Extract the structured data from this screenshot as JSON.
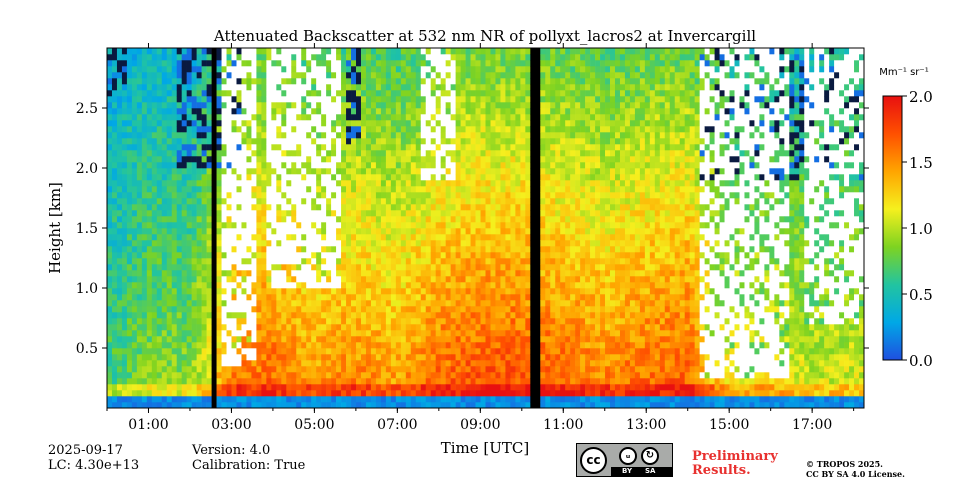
{
  "chart_data": {
    "type": "heatmap",
    "title": "Attenuated Backscatter at 532 nm NR of pollyxt_lacros2 at Invercargill",
    "xlabel": "Time [UTC]",
    "ylabel": "Height [km]",
    "x_range_hours": [
      0.0,
      18.25
    ],
    "y_range_km": [
      0.0,
      3.0
    ],
    "x_ticks": [
      {
        "value": 1,
        "label": "01:00"
      },
      {
        "value": 3,
        "label": "03:00"
      },
      {
        "value": 5,
        "label": "05:00"
      },
      {
        "value": 7,
        "label": "07:00"
      },
      {
        "value": 9,
        "label": "09:00"
      },
      {
        "value": 11,
        "label": "11:00"
      },
      {
        "value": 13,
        "label": "13:00"
      },
      {
        "value": 15,
        "label": "15:00"
      },
      {
        "value": 17,
        "label": "17:00"
      }
    ],
    "y_ticks": [
      {
        "value": 0.5,
        "label": "0.5"
      },
      {
        "value": 1.0,
        "label": "1.0"
      },
      {
        "value": 1.5,
        "label": "1.5"
      },
      {
        "value": 2.0,
        "label": "2.0"
      },
      {
        "value": 2.5,
        "label": "2.5"
      }
    ],
    "colorbar": {
      "unit": "Mm⁻¹ sr⁻¹",
      "range": [
        0.0,
        2.0
      ],
      "ticks": [
        {
          "value": 0.0,
          "label": "0.0"
        },
        {
          "value": 0.5,
          "label": "0.5"
        },
        {
          "value": 1.0,
          "label": "1.0"
        },
        {
          "value": 1.5,
          "label": "1.5"
        },
        {
          "value": 2.0,
          "label": "2.0"
        }
      ],
      "colors": [
        "#1f4fe0",
        "#00a8e6",
        "#22c4a0",
        "#7ed321",
        "#f5f01e",
        "#ffa500",
        "#ff5000",
        "#e81010"
      ]
    },
    "no_data_periods_hours": [
      [
        2.5,
        2.68
      ],
      [
        10.25,
        10.43
      ]
    ],
    "profile_keys_hours": [
      0,
      1,
      2,
      3,
      4,
      5,
      6,
      7,
      8,
      9,
      10,
      11,
      12,
      13,
      14,
      15,
      16,
      17,
      18.25
    ],
    "profile_keys_backscatter": [
      0.7,
      0.9,
      0.9,
      1.6,
      1.7,
      1.5,
      1.6,
      1.5,
      1.7,
      1.8,
      1.8,
      1.7,
      1.6,
      1.7,
      1.75,
      1.2,
      1.2,
      1.1,
      1.1
    ],
    "cloud_base_km": [
      {
        "start": 2.8,
        "end": 3.6,
        "base": 0.35
      },
      {
        "start": 3.8,
        "end": 5.6,
        "base": 1.0
      },
      {
        "start": 7.6,
        "end": 8.4,
        "base": 1.9
      },
      {
        "start": 14.3,
        "end": 16.4,
        "base": 0.25
      },
      {
        "start": 16.8,
        "end": 18.25,
        "base": 0.7
      }
    ],
    "dark_noise_top": [
      {
        "start": 0.0,
        "end": 0.5,
        "base": 2.6
      },
      {
        "start": 1.7,
        "end": 3.2,
        "base": 2.0
      },
      {
        "start": 5.8,
        "end": 6.1,
        "base": 2.2
      },
      {
        "start": 14.3,
        "end": 18.25,
        "base": 1.9
      }
    ]
  },
  "meta": {
    "date": "2025-09-17",
    "lc": "LC: 4.30e+13",
    "version": "Version: 4.0",
    "calibration": "Calibration: True"
  },
  "license": {
    "preliminary_line1": "Preliminary",
    "preliminary_line2": "Results.",
    "copyright_line1": "© TROPOS 2025.",
    "copyright_line2": "CC BY SA 4.0 License.",
    "badge_cc": "cc",
    "badge_by": "BY",
    "badge_sa": "SA",
    "badge_person": "ᵤ",
    "badge_share": "↻"
  }
}
